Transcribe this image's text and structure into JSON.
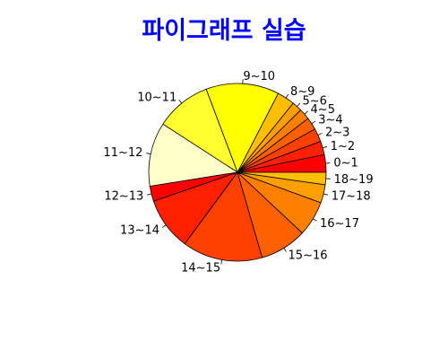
{
  "chart_data": {
    "type": "pie",
    "title": "파이그래프 실습",
    "title_color": "#0000ff",
    "start_angle_deg": 0,
    "direction": "counterclockwise",
    "border_color": "#000000",
    "categories": [
      "0~1",
      "1~2",
      "2~3",
      "3~4",
      "4~5",
      "5~6",
      "8~9",
      "9~10",
      "10~11",
      "11~12",
      "12~13",
      "13~14",
      "14~15",
      "15~16",
      "16~17",
      "17~18",
      "18~19"
    ],
    "values": [
      3.0,
      2.3,
      2.3,
      2.1,
      1.9,
      1.7,
      3.0,
      12.5,
      9.5,
      10.9,
      2.6,
      9.0,
      13.7,
      8.0,
      6.0,
      3.1,
      2.1
    ],
    "colors": [
      "#ff0000",
      "#ff2000",
      "#ff4000",
      "#ff6000",
      "#ff8000",
      "#ff9f00",
      "#ffbf00",
      "#ffff00",
      "#ffff30",
      "#ffffc8",
      "#ff0000",
      "#ff2000",
      "#ff4000",
      "#ff6000",
      "#ff8000",
      "#ffa000",
      "#ffc000"
    ]
  }
}
